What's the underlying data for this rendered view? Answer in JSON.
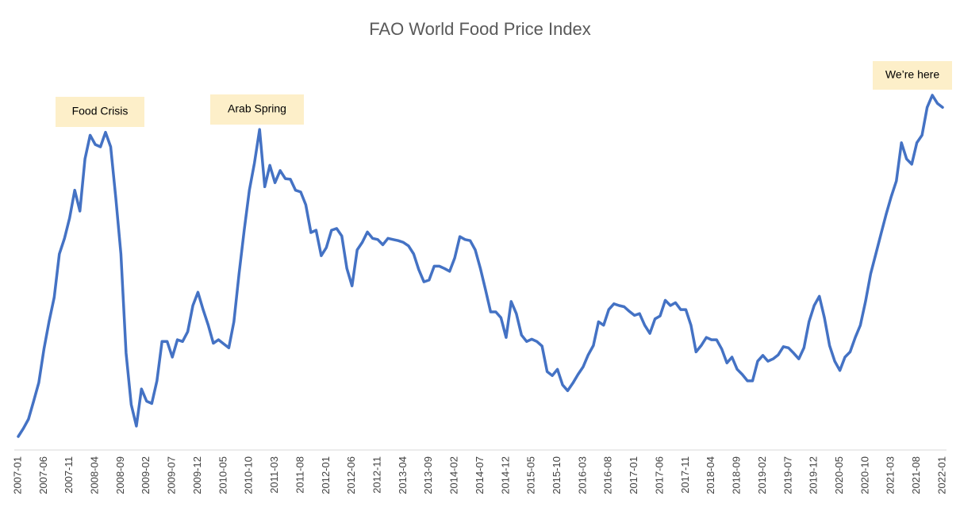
{
  "chart_data": {
    "type": "line",
    "title": "FAO World Food Price Index",
    "color": "#4472c4",
    "annotations": [
      "Food Crisis",
      "Arab Spring",
      "We’re here"
    ],
    "categories": [
      "2007-01",
      null,
      null,
      null,
      null,
      "2007-06",
      null,
      null,
      null,
      null,
      "2007-11",
      null,
      null,
      null,
      null,
      "2008-04",
      null,
      null,
      null,
      null,
      "2008-09",
      null,
      null,
      null,
      null,
      "2009-02",
      null,
      null,
      null,
      null,
      "2009-07",
      null,
      null,
      null,
      null,
      "2009-12",
      null,
      null,
      null,
      null,
      "2010-05",
      null,
      null,
      null,
      null,
      "2010-10",
      null,
      null,
      null,
      null,
      "2011-03",
      null,
      null,
      null,
      null,
      "2011-08",
      null,
      null,
      null,
      null,
      "2012-01",
      null,
      null,
      null,
      null,
      "2012-06",
      null,
      null,
      null,
      null,
      "2012-11",
      null,
      null,
      null,
      null,
      "2013-04",
      null,
      null,
      null,
      null,
      "2013-09",
      null,
      null,
      null,
      null,
      "2014-02",
      null,
      null,
      null,
      null,
      "2014-07",
      null,
      null,
      null,
      null,
      "2014-12",
      null,
      null,
      null,
      null,
      "2015-05",
      null,
      null,
      null,
      null,
      "2015-10",
      null,
      null,
      null,
      null,
      "2016-03",
      null,
      null,
      null,
      null,
      "2016-08",
      null,
      null,
      null,
      null,
      "2017-01",
      null,
      null,
      null,
      null,
      "2017-06",
      null,
      null,
      null,
      null,
      "2017-11",
      null,
      null,
      null,
      null,
      "2018-04",
      null,
      null,
      null,
      null,
      "2018-09",
      null,
      null,
      null,
      null,
      "2019-02",
      null,
      null,
      null,
      null,
      "2019-07",
      null,
      null,
      null,
      null,
      "2019-12",
      null,
      null,
      null,
      null,
      "2020-05",
      null,
      null,
      null,
      null,
      "2020-10",
      null,
      null,
      null,
      null,
      "2021-03",
      null,
      null,
      null,
      null,
      "2021-08",
      null,
      null,
      null,
      null,
      "2022-01"
    ],
    "values": [
      78.8,
      80.2,
      81.8,
      84.9,
      88.1,
      93.9,
      98.6,
      102.8,
      110.3,
      113.0,
      116.5,
      121.3,
      117.7,
      126.7,
      130.8,
      129.2,
      128.8,
      131.3,
      128.8,
      119.9,
      110.3,
      93.2,
      84.3,
      80.6,
      87.0,
      84.9,
      84.5,
      88.4,
      95.2,
      95.2,
      92.5,
      95.5,
      95.2,
      96.9,
      101.4,
      103.7,
      100.7,
      98.0,
      94.9,
      95.5,
      94.8,
      94.1,
      98.6,
      106.9,
      114.4,
      121.3,
      126.0,
      131.8,
      121.9,
      125.6,
      122.6,
      124.7,
      123.3,
      123.2,
      121.3,
      121.0,
      118.8,
      114.0,
      114.4,
      110.0,
      111.4,
      114.4,
      114.7,
      113.4,
      107.8,
      104.8,
      111.0,
      112.3,
      114.1,
      113.0,
      112.8,
      111.9,
      113.0,
      112.8,
      112.6,
      112.3,
      111.7,
      110.3,
      107.6,
      105.5,
      105.8,
      108.2,
      108.2,
      107.8,
      107.3,
      109.6,
      113.3,
      112.8,
      112.6,
      111.0,
      107.8,
      104.1,
      100.3,
      100.3,
      99.3,
      95.9,
      102.1,
      100.0,
      96.3,
      95.2,
      95.6,
      95.2,
      94.4,
      90.0,
      89.3,
      90.4,
      87.7,
      86.7,
      88.0,
      89.5,
      90.8,
      92.9,
      94.5,
      98.6,
      98.0,
      100.7,
      101.7,
      101.4,
      101.2,
      100.4,
      99.7,
      100.0,
      98.0,
      96.6,
      99.1,
      99.6,
      102.3,
      101.4,
      101.9,
      100.7,
      100.7,
      98.0,
      93.4,
      94.5,
      95.9,
      95.5,
      95.5,
      93.9,
      91.5,
      92.5,
      90.4,
      89.5,
      88.4,
      88.4,
      91.8,
      92.8,
      91.8,
      92.2,
      92.9,
      94.3,
      94.1,
      93.2,
      92.2,
      94.1,
      98.6,
      101.4,
      103.0,
      99.3,
      94.5,
      91.8,
      90.2,
      92.5,
      93.4,
      95.9,
      98.0,
      102.1,
      106.9,
      110.3,
      113.7,
      117.1,
      120.2,
      122.9,
      129.5,
      126.7,
      125.8,
      129.5,
      130.8,
      135.6,
      137.7,
      136.3,
      135.6
    ]
  }
}
